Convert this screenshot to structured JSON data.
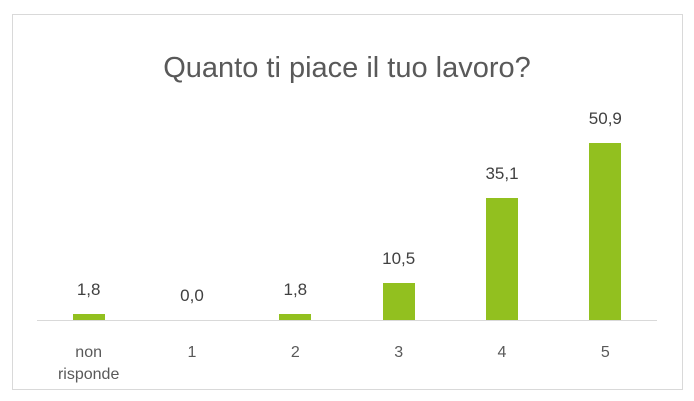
{
  "chart_data": {
    "type": "bar",
    "title": "Quanto ti piace il tuo lavoro?",
    "categories": [
      "non risponde",
      "1",
      "2",
      "3",
      "4",
      "5"
    ],
    "values": [
      1.8,
      0.0,
      1.8,
      10.5,
      35.1,
      50.9
    ],
    "value_labels": [
      "1,8",
      "0,0",
      "1,8",
      "10,5",
      "35,1",
      "50,9"
    ],
    "color": "#92c01f"
  }
}
